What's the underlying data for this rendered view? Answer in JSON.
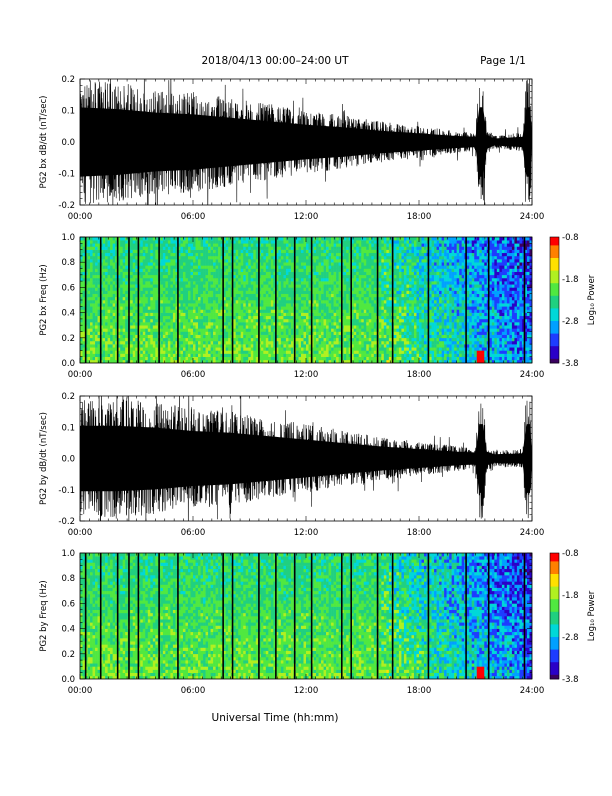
{
  "header": {
    "title": "2018/04/13   00:00–24:00 UT",
    "page_label": "Page 1/1"
  },
  "footer": {
    "xlabel": "Universal Time (hh:mm)"
  },
  "colors": {
    "trace": "#000000",
    "colormap": [
      "#3a0060",
      "#2a00c8",
      "#1e3cff",
      "#00a0ff",
      "#00d8d8",
      "#20d080",
      "#50e840",
      "#b0f020",
      "#ffe000",
      "#ff8000",
      "#ff0000"
    ]
  },
  "chart_data": [
    {
      "type": "line",
      "panel": "waveform-bx",
      "ylabel": "PG2 bx dB/dt (nT/sec)",
      "x_unit": "hours UT",
      "xlim": [
        0,
        24
      ],
      "ylim": [
        -0.2,
        0.2
      ],
      "yticks": [
        "-0.2",
        "-0.1",
        "0.0",
        "0.1",
        "0.2"
      ],
      "xticks": [
        "00:00",
        "06:00",
        "12:00",
        "18:00",
        "24:00"
      ],
      "envelope": {
        "x": [
          0,
          2,
          4,
          6,
          8,
          10,
          12,
          14,
          16,
          18,
          20,
          21,
          21.2,
          21.4,
          21.6,
          22,
          23.5,
          23.7,
          23.9,
          24
        ],
        "amplitude": [
          0.2,
          0.19,
          0.17,
          0.16,
          0.14,
          0.12,
          0.1,
          0.085,
          0.065,
          0.05,
          0.035,
          0.03,
          0.2,
          0.2,
          0.04,
          0.02,
          0.03,
          0.2,
          0.2,
          0.03
        ]
      }
    },
    {
      "type": "heatmap",
      "panel": "spectrogram-bx",
      "ylabel": "PG2 bx Freq (Hz)",
      "xlim": [
        0,
        24
      ],
      "ylim": [
        0.0,
        1.0
      ],
      "yticks": [
        "0.0",
        "0.2",
        "0.4",
        "0.6",
        "0.8",
        "1.0"
      ],
      "xticks": [
        "00:00",
        "06:00",
        "12:00",
        "18:00",
        "24:00"
      ],
      "colorbar": {
        "label": "Log₁₀ Power",
        "range": [
          -3.8,
          -0.8
        ],
        "ticks": [
          "-0.8",
          "-1.8",
          "-2.8",
          "-3.8"
        ]
      },
      "gap_lines_hours": [
        0.3,
        1.1,
        2.0,
        2.6,
        3.1,
        4.2,
        5.2,
        7.6,
        8.1,
        9.5,
        10.4,
        11.4,
        12.3,
        13.9,
        14.4,
        15.8,
        16.6,
        18.5,
        20.5,
        21.7,
        23.6
      ]
    },
    {
      "type": "line",
      "panel": "waveform-by",
      "ylabel": "PG2 by dB/dt (nT/sec)",
      "x_unit": "hours UT",
      "xlim": [
        0,
        24
      ],
      "ylim": [
        -0.2,
        0.2
      ],
      "yticks": [
        "-0.2",
        "-0.1",
        "0.0",
        "0.1",
        "0.2"
      ],
      "xticks": [
        "00:00",
        "06:00",
        "12:00",
        "18:00",
        "24:00"
      ],
      "envelope": {
        "x": [
          0,
          2,
          4,
          6,
          8,
          10,
          12,
          14,
          16,
          18,
          20,
          21,
          21.2,
          21.4,
          21.6,
          22,
          23.5,
          23.7,
          23.9,
          24
        ],
        "amplitude": [
          0.19,
          0.19,
          0.18,
          0.16,
          0.15,
          0.13,
          0.11,
          0.09,
          0.07,
          0.055,
          0.04,
          0.035,
          0.2,
          0.2,
          0.04,
          0.025,
          0.03,
          0.2,
          0.2,
          0.03
        ]
      }
    },
    {
      "type": "heatmap",
      "panel": "spectrogram-by",
      "ylabel": "PG2 by Freq (Hz)",
      "xlim": [
        0,
        24
      ],
      "ylim": [
        0.0,
        1.0
      ],
      "yticks": [
        "0.0",
        "0.2",
        "0.4",
        "0.6",
        "0.8",
        "1.0"
      ],
      "xticks": [
        "00:00",
        "06:00",
        "12:00",
        "18:00",
        "24:00"
      ],
      "colorbar": {
        "label": "Log₁₀ Power",
        "range": [
          -3.8,
          -0.8
        ],
        "ticks": [
          "-0.8",
          "-1.8",
          "-2.8",
          "-3.8"
        ]
      },
      "gap_lines_hours": [
        0.3,
        1.1,
        2.0,
        2.6,
        3.1,
        4.2,
        5.2,
        7.6,
        8.1,
        9.5,
        10.4,
        11.4,
        12.3,
        13.9,
        14.4,
        15.8,
        16.6,
        18.5,
        20.5,
        21.7,
        23.6
      ]
    }
  ]
}
